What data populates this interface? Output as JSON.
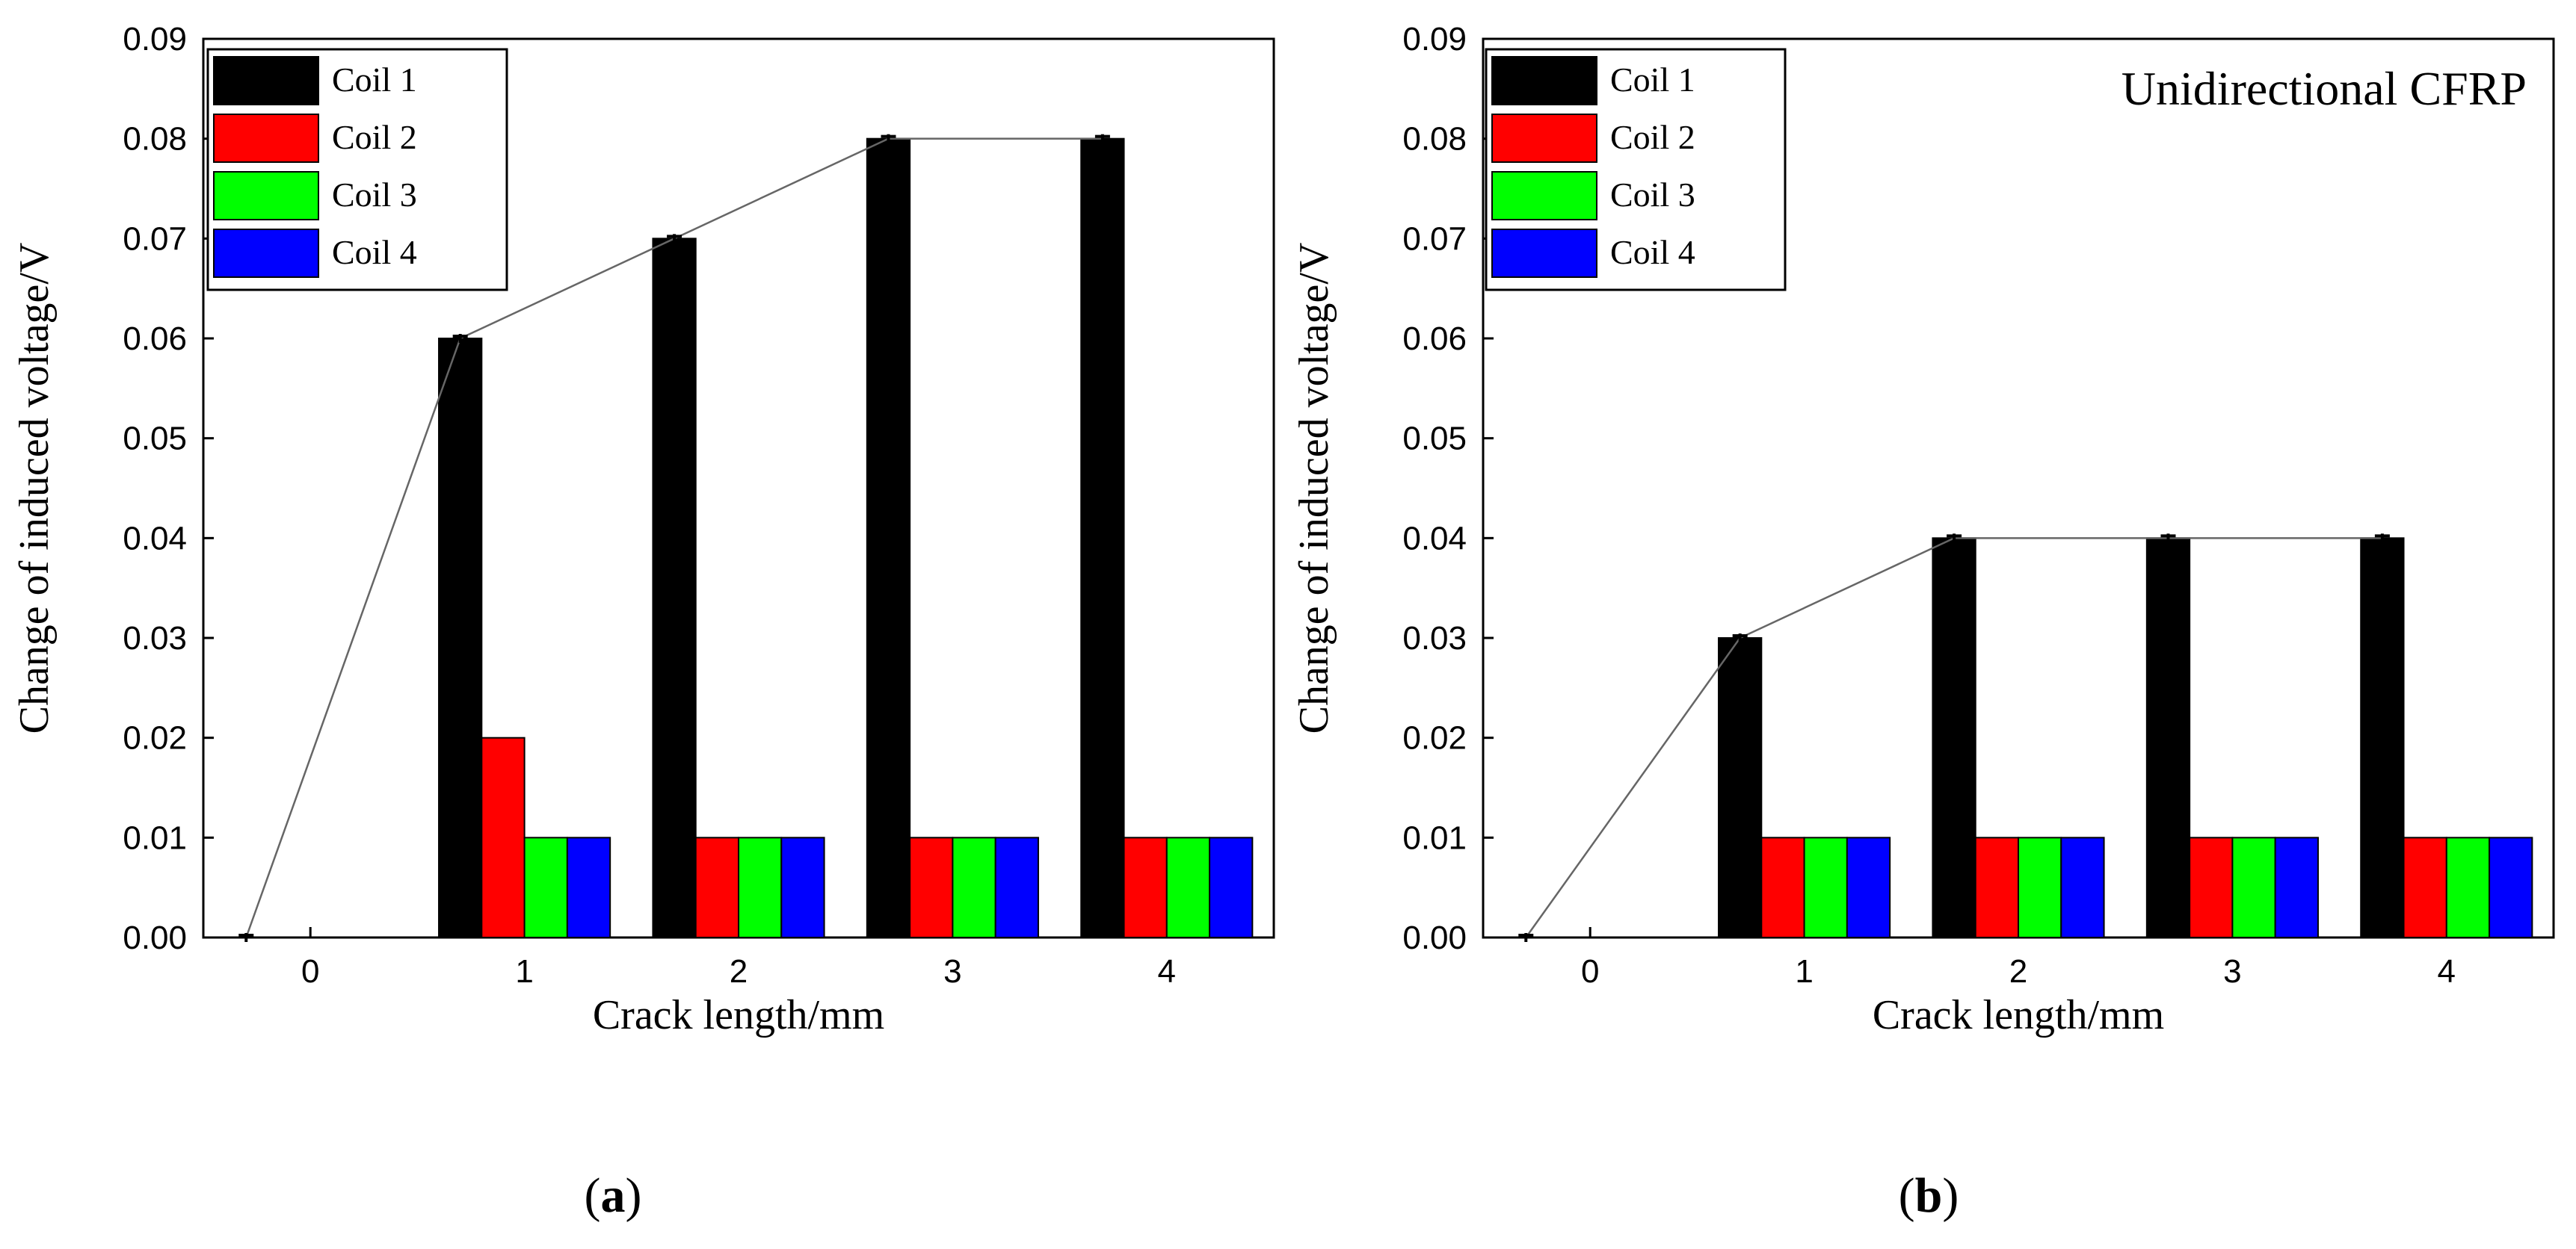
{
  "chart_data": [
    {
      "type": "bar",
      "panel_label": "a",
      "annotation": "",
      "categories": [
        "0",
        "1",
        "2",
        "3",
        "4"
      ],
      "series": [
        {
          "name": "Coil 1",
          "color": "#000000",
          "values": [
            0,
            0.06,
            0.07,
            0.08,
            0.08
          ]
        },
        {
          "name": "Coil 2",
          "color": "#ff0000",
          "values": [
            0,
            0.02,
            0.01,
            0.01,
            0.01
          ]
        },
        {
          "name": "Coil 3",
          "color": "#00ff00",
          "values": [
            0,
            0.01,
            0.01,
            0.01,
            0.01
          ]
        },
        {
          "name": "Coil 4",
          "color": "#0000ff",
          "values": [
            0,
            0.01,
            0.01,
            0.01,
            0.01
          ]
        }
      ],
      "trend_line": {
        "series": "Coil 1",
        "values": [
          0,
          0.06,
          0.07,
          0.08,
          0.08
        ]
      },
      "xlabel": "Crack length/mm",
      "ylabel": "Change of induced voltage/V",
      "ylim": [
        0,
        0.09
      ],
      "yticks": [
        "0.00",
        "0.01",
        "0.02",
        "0.03",
        "0.04",
        "0.05",
        "0.06",
        "0.07",
        "0.08",
        "0.09"
      ],
      "legend_position": "top-left",
      "grid": false
    },
    {
      "type": "bar",
      "panel_label": "b",
      "annotation": "Unidirectional CFRP",
      "categories": [
        "0",
        "1",
        "2",
        "3",
        "4"
      ],
      "series": [
        {
          "name": "Coil 1",
          "color": "#000000",
          "values": [
            0,
            0.03,
            0.04,
            0.04,
            0.04
          ]
        },
        {
          "name": "Coil 2",
          "color": "#ff0000",
          "values": [
            0,
            0.01,
            0.01,
            0.01,
            0.01
          ]
        },
        {
          "name": "Coil 3",
          "color": "#00ff00",
          "values": [
            0,
            0.01,
            0.01,
            0.01,
            0.01
          ]
        },
        {
          "name": "Coil 4",
          "color": "#0000ff",
          "values": [
            0,
            0.01,
            0.01,
            0.01,
            0.01
          ]
        }
      ],
      "trend_line": {
        "series": "Coil 1",
        "values": [
          0,
          0.03,
          0.04,
          0.04,
          0.04
        ]
      },
      "xlabel": "Crack length/mm",
      "ylabel": "Change of induced voltage/V",
      "ylim": [
        0,
        0.09
      ],
      "yticks": [
        "0.00",
        "0.01",
        "0.02",
        "0.03",
        "0.04",
        "0.05",
        "0.06",
        "0.07",
        "0.08",
        "0.09"
      ],
      "legend_position": "top-left",
      "grid": false
    }
  ]
}
